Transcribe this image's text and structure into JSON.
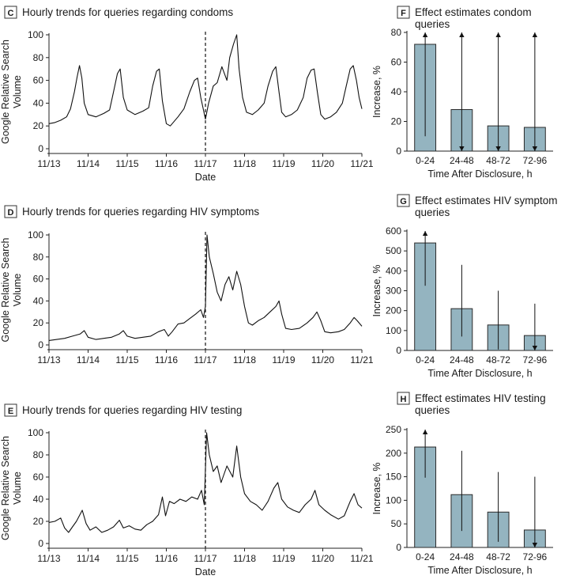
{
  "figure": {
    "axis_color": "#222222",
    "bar_fill": "#94b4c0",
    "bar_stroke": "#2b2b2b",
    "panel_letter_bg": "#ffffff"
  },
  "chart_data": [
    {
      "id": "C",
      "type": "line",
      "panel_letter": "C",
      "title": "Hourly trends for queries regarding condoms",
      "xlabel": "Date",
      "ylabel": "Google Relative Search Volume",
      "x_ticks": [
        "11/13",
        "11/14",
        "11/15",
        "11/16",
        "11/17",
        "11/18",
        "11/19",
        "11/20",
        "11/21"
      ],
      "y_ticks": [
        0,
        20,
        40,
        60,
        80,
        100
      ],
      "ylim": [
        0,
        100
      ],
      "xlim_days": [
        0,
        8
      ],
      "disclosure_marker_x": "11/17",
      "x_unit": "days since 11/13",
      "series": [
        {
          "values_xy": [
            [
              0.0,
              22
            ],
            [
              0.15,
              23
            ],
            [
              0.3,
              25
            ],
            [
              0.45,
              28
            ],
            [
              0.55,
              35
            ],
            [
              0.65,
              50
            ],
            [
              0.72,
              63
            ],
            [
              0.78,
              73
            ],
            [
              0.84,
              62
            ],
            [
              0.9,
              40
            ],
            [
              1.0,
              30
            ],
            [
              1.2,
              28
            ],
            [
              1.4,
              31
            ],
            [
              1.55,
              34
            ],
            [
              1.65,
              50
            ],
            [
              1.75,
              66
            ],
            [
              1.82,
              70
            ],
            [
              1.9,
              45
            ],
            [
              2.0,
              34
            ],
            [
              2.2,
              30
            ],
            [
              2.4,
              33
            ],
            [
              2.55,
              36
            ],
            [
              2.65,
              55
            ],
            [
              2.75,
              68
            ],
            [
              2.82,
              70
            ],
            [
              2.9,
              42
            ],
            [
              3.0,
              22
            ],
            [
              3.1,
              20
            ],
            [
              3.3,
              28
            ],
            [
              3.45,
              35
            ],
            [
              3.6,
              50
            ],
            [
              3.72,
              60
            ],
            [
              3.8,
              62
            ],
            [
              3.88,
              45
            ],
            [
              4.0,
              26
            ],
            [
              4.08,
              40
            ],
            [
              4.2,
              55
            ],
            [
              4.3,
              58
            ],
            [
              4.42,
              72
            ],
            [
              4.55,
              60
            ],
            [
              4.62,
              80
            ],
            [
              4.72,
              92
            ],
            [
              4.8,
              100
            ],
            [
              4.86,
              70
            ],
            [
              4.95,
              45
            ],
            [
              5.05,
              32
            ],
            [
              5.2,
              30
            ],
            [
              5.35,
              34
            ],
            [
              5.5,
              40
            ],
            [
              5.6,
              55
            ],
            [
              5.72,
              68
            ],
            [
              5.8,
              72
            ],
            [
              5.88,
              50
            ],
            [
              5.95,
              32
            ],
            [
              6.05,
              28
            ],
            [
              6.2,
              30
            ],
            [
              6.35,
              34
            ],
            [
              6.5,
              45
            ],
            [
              6.6,
              62
            ],
            [
              6.7,
              69
            ],
            [
              6.78,
              70
            ],
            [
              6.86,
              50
            ],
            [
              6.95,
              30
            ],
            [
              7.05,
              26
            ],
            [
              7.2,
              28
            ],
            [
              7.35,
              32
            ],
            [
              7.5,
              40
            ],
            [
              7.6,
              55
            ],
            [
              7.7,
              70
            ],
            [
              7.78,
              73
            ],
            [
              7.86,
              60
            ],
            [
              7.93,
              45
            ],
            [
              8.0,
              35
            ]
          ]
        }
      ]
    },
    {
      "id": "F",
      "type": "bar",
      "panel_letter": "F",
      "title": "Effect estimates condom queries",
      "xlabel": "Time After Disclosure, h",
      "ylabel": "Increase, %",
      "categories": [
        "0-24",
        "24-48",
        "48-72",
        "72-96"
      ],
      "values": [
        72,
        28,
        17,
        16
      ],
      "ci_low": [
        10,
        0,
        0,
        0
      ],
      "ci_high": [
        80,
        80,
        80,
        80
      ],
      "arrow_top": [
        true,
        true,
        true,
        true
      ],
      "arrow_bottom": [
        false,
        true,
        true,
        true
      ],
      "y_ticks": [
        0,
        20,
        40,
        60,
        80
      ],
      "ylim": [
        0,
        80
      ]
    },
    {
      "id": "D",
      "type": "line",
      "panel_letter": "D",
      "title": "Hourly trends for queries regarding HIV symptoms",
      "xlabel": "",
      "ylabel": "Google Relative Search Volume",
      "x_ticks": [
        "11/13",
        "11/14",
        "11/15",
        "11/16",
        "11/17",
        "11/18",
        "11/19",
        "11/20",
        "11/21"
      ],
      "y_ticks": [
        0,
        20,
        40,
        60,
        80,
        100
      ],
      "ylim": [
        0,
        100
      ],
      "xlim_days": [
        0,
        8
      ],
      "disclosure_marker_x": "11/17",
      "x_unit": "days since 11/13",
      "series": [
        {
          "values_xy": [
            [
              0.0,
              4
            ],
            [
              0.2,
              5
            ],
            [
              0.4,
              6
            ],
            [
              0.6,
              8
            ],
            [
              0.8,
              10
            ],
            [
              0.9,
              13
            ],
            [
              1.0,
              7
            ],
            [
              1.2,
              5
            ],
            [
              1.4,
              6
            ],
            [
              1.6,
              7
            ],
            [
              1.8,
              10
            ],
            [
              1.9,
              13
            ],
            [
              2.0,
              8
            ],
            [
              2.2,
              6
            ],
            [
              2.4,
              7
            ],
            [
              2.6,
              8
            ],
            [
              2.8,
              12
            ],
            [
              2.95,
              14
            ],
            [
              3.05,
              8
            ],
            [
              3.15,
              12
            ],
            [
              3.3,
              19
            ],
            [
              3.45,
              20
            ],
            [
              3.6,
              24
            ],
            [
              3.75,
              28
            ],
            [
              3.88,
              32
            ],
            [
              3.95,
              25
            ],
            [
              4.0,
              35
            ],
            [
              4.04,
              100
            ],
            [
              4.1,
              80
            ],
            [
              4.2,
              65
            ],
            [
              4.3,
              48
            ],
            [
              4.4,
              40
            ],
            [
              4.5,
              55
            ],
            [
              4.6,
              62
            ],
            [
              4.7,
              50
            ],
            [
              4.8,
              67
            ],
            [
              4.9,
              55
            ],
            [
              5.0,
              35
            ],
            [
              5.1,
              20
            ],
            [
              5.2,
              18
            ],
            [
              5.35,
              22
            ],
            [
              5.5,
              25
            ],
            [
              5.65,
              30
            ],
            [
              5.8,
              35
            ],
            [
              5.88,
              40
            ],
            [
              5.95,
              28
            ],
            [
              6.05,
              15
            ],
            [
              6.2,
              14
            ],
            [
              6.4,
              15
            ],
            [
              6.6,
              20
            ],
            [
              6.75,
              25
            ],
            [
              6.85,
              30
            ],
            [
              6.95,
              22
            ],
            [
              7.05,
              12
            ],
            [
              7.2,
              11
            ],
            [
              7.4,
              12
            ],
            [
              7.55,
              14
            ],
            [
              7.7,
              20
            ],
            [
              7.8,
              25
            ],
            [
              7.88,
              22
            ],
            [
              8.0,
              17
            ]
          ]
        }
      ]
    },
    {
      "id": "G",
      "type": "bar",
      "panel_letter": "G",
      "title": "Effect estimates HIV symptom queries",
      "xlabel": "Time After Disclosure, h",
      "ylabel": "Increase, %",
      "categories": [
        "0-24",
        "24-48",
        "48-72",
        "72-96"
      ],
      "values": [
        540,
        210,
        128,
        75
      ],
      "ci_low": [
        325,
        70,
        5,
        0
      ],
      "ci_high": [
        600,
        430,
        300,
        235
      ],
      "arrow_top": [
        true,
        false,
        false,
        false
      ],
      "arrow_bottom": [
        false,
        false,
        false,
        true
      ],
      "y_ticks": [
        0,
        100,
        200,
        300,
        400,
        500,
        600
      ],
      "ylim": [
        0,
        600
      ]
    },
    {
      "id": "E",
      "type": "line",
      "panel_letter": "E",
      "title": "Hourly trends for queries regarding HIV testing",
      "xlabel": "Date",
      "ylabel": "Google Relative Search Volume",
      "x_ticks": [
        "11/13",
        "11/14",
        "11/15",
        "11/16",
        "11/17",
        "11/18",
        "11/19",
        "11/20",
        "11/21"
      ],
      "y_ticks": [
        0,
        20,
        40,
        60,
        80,
        100
      ],
      "ylim": [
        0,
        100
      ],
      "xlim_days": [
        0,
        8
      ],
      "disclosure_marker_x": "11/17",
      "x_unit": "days since 11/13",
      "series": [
        {
          "values_xy": [
            [
              0.0,
              19
            ],
            [
              0.15,
              20
            ],
            [
              0.3,
              23
            ],
            [
              0.4,
              14
            ],
            [
              0.5,
              10
            ],
            [
              0.6,
              15
            ],
            [
              0.7,
              20
            ],
            [
              0.85,
              30
            ],
            [
              0.95,
              18
            ],
            [
              1.05,
              12
            ],
            [
              1.2,
              15
            ],
            [
              1.35,
              10
            ],
            [
              1.5,
              12
            ],
            [
              1.65,
              15
            ],
            [
              1.8,
              21
            ],
            [
              1.9,
              14
            ],
            [
              2.05,
              16
            ],
            [
              2.2,
              13
            ],
            [
              2.35,
              12
            ],
            [
              2.5,
              17
            ],
            [
              2.65,
              20
            ],
            [
              2.8,
              26
            ],
            [
              2.9,
              42
            ],
            [
              2.98,
              25
            ],
            [
              3.08,
              38
            ],
            [
              3.2,
              36
            ],
            [
              3.35,
              40
            ],
            [
              3.5,
              38
            ],
            [
              3.65,
              42
            ],
            [
              3.8,
              40
            ],
            [
              3.9,
              48
            ],
            [
              3.97,
              35
            ],
            [
              4.03,
              100
            ],
            [
              4.1,
              80
            ],
            [
              4.2,
              65
            ],
            [
              4.3,
              70
            ],
            [
              4.4,
              55
            ],
            [
              4.55,
              70
            ],
            [
              4.7,
              60
            ],
            [
              4.8,
              88
            ],
            [
              4.9,
              60
            ],
            [
              5.0,
              45
            ],
            [
              5.15,
              38
            ],
            [
              5.3,
              35
            ],
            [
              5.45,
              30
            ],
            [
              5.6,
              38
            ],
            [
              5.75,
              50
            ],
            [
              5.85,
              55
            ],
            [
              5.95,
              40
            ],
            [
              6.1,
              33
            ],
            [
              6.25,
              30
            ],
            [
              6.4,
              28
            ],
            [
              6.55,
              35
            ],
            [
              6.7,
              40
            ],
            [
              6.8,
              48
            ],
            [
              6.9,
              35
            ],
            [
              7.05,
              30
            ],
            [
              7.2,
              26
            ],
            [
              7.4,
              22
            ],
            [
              7.55,
              25
            ],
            [
              7.7,
              38
            ],
            [
              7.8,
              45
            ],
            [
              7.9,
              35
            ],
            [
              8.0,
              32
            ]
          ]
        }
      ]
    },
    {
      "id": "H",
      "type": "bar",
      "panel_letter": "H",
      "title": "Effect estimates HIV testing queries",
      "xlabel": "Time After Disclosure, h",
      "ylabel": "Increase, %",
      "categories": [
        "0-24",
        "24-48",
        "48-72",
        "72-96"
      ],
      "values": [
        213,
        112,
        75,
        37
      ],
      "ci_low": [
        148,
        35,
        12,
        0
      ],
      "ci_high": [
        250,
        205,
        160,
        150
      ],
      "arrow_top": [
        true,
        false,
        false,
        false
      ],
      "arrow_bottom": [
        false,
        false,
        false,
        true
      ],
      "y_ticks": [
        0,
        50,
        100,
        150,
        200,
        250
      ],
      "ylim": [
        0,
        250
      ]
    }
  ]
}
